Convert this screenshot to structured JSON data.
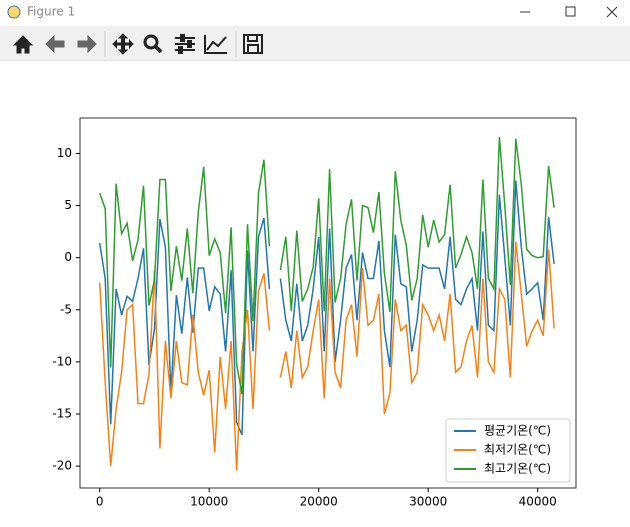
{
  "window": {
    "title": "Figure 1"
  },
  "chart_data": {
    "type": "line",
    "x": [
      0,
      500,
      1000,
      1500,
      2000,
      2500,
      3000,
      3500,
      4000,
      4500,
      5000,
      5500,
      6000,
      6500,
      7000,
      7500,
      8000,
      8500,
      9000,
      9500,
      10000,
      10500,
      11000,
      11500,
      12000,
      12500,
      13000,
      13500,
      14000,
      14500,
      15000,
      15500,
      16000,
      16500,
      17000,
      17500,
      18000,
      18500,
      19000,
      19500,
      20000,
      20500,
      21000,
      21500,
      22000,
      22500,
      23000,
      23500,
      24000,
      24500,
      25000,
      25500,
      26000,
      26500,
      27000,
      27500,
      28000,
      28500,
      29000,
      29500,
      30000,
      30500,
      31000,
      31500,
      32000,
      32500,
      33000,
      33500,
      34000,
      34500,
      35000,
      35500,
      36000,
      36500,
      37000,
      37500,
      38000,
      38500,
      39000,
      39500,
      40000,
      40500,
      41000,
      41500
    ],
    "series": [
      {
        "name": "평균기온(℃)",
        "color": "#1f77b4",
        "values": [
          1.4,
          -2,
          -16,
          -3,
          -5.5,
          -3.7,
          -4.2,
          -2,
          0.9,
          -10.3,
          -6.8,
          3.7,
          1,
          -13,
          -3.6,
          -7.3,
          -1.9,
          -7.2,
          -1,
          -1,
          -5.1,
          -2.8,
          -3.5,
          -9,
          -1.2,
          -15.8,
          -17,
          0.7,
          -9,
          2,
          3.8,
          -3,
          null,
          -2,
          -6,
          -8,
          -2.5,
          -8,
          -6.5,
          -3,
          2,
          -9,
          2.8,
          -10,
          -6,
          -1,
          0.3,
          -6,
          0.5,
          -2,
          -2,
          1.6,
          -7,
          -10.5,
          2.2,
          -2.5,
          -2.8,
          -9,
          -6,
          -0.7,
          -1,
          -1,
          -1,
          -3,
          2,
          -4,
          -4.5,
          -3,
          -2,
          -7,
          2.5,
          -6.5,
          -7,
          6,
          0,
          -6.5,
          7.4,
          1,
          -3.5,
          -3,
          -2.4,
          -6,
          3.9,
          -0.6
        ]
      },
      {
        "name": "최저기온(℃)",
        "color": "#ff7f0e",
        "values": [
          -2.4,
          -12,
          -20,
          -14.5,
          -11,
          -5,
          -4.5,
          -14,
          -14,
          -11.2,
          -1.2,
          -18.3,
          -8,
          -13.5,
          -8,
          -12,
          -12.2,
          -5.5,
          -11,
          -13.2,
          -10.8,
          -18.7,
          -9.5,
          -14.5,
          -8,
          -20.4,
          -9,
          -5,
          -14.5,
          -3.2,
          -1.5,
          -7,
          null,
          -11.5,
          -9,
          -12.5,
          -7,
          -11.5,
          -10.5,
          -7,
          -4,
          -13.5,
          -2,
          -11,
          -12.5,
          -6,
          -4.5,
          -9.5,
          -1,
          -6.5,
          -6,
          -3.5,
          -15,
          -13,
          -4,
          -7,
          -6.5,
          -12,
          -11,
          -4.5,
          -5.5,
          -7,
          -5.5,
          -8,
          -3.5,
          -11,
          -10.5,
          -8,
          -6.5,
          -11.5,
          -2,
          -10,
          -11,
          -3,
          -4,
          -11.5,
          1.5,
          -3.5,
          -8.5,
          -7,
          -6,
          -7.5,
          0.8,
          -6.8
        ]
      },
      {
        "name": "최고기온(℃)",
        "color": "#2ca02c",
        "values": [
          6.2,
          4.7,
          -10.5,
          7.1,
          2.3,
          3.3,
          -0.3,
          1.7,
          6.9,
          -4.6,
          -2.1,
          7.5,
          7.5,
          -3.2,
          1.1,
          -2.2,
          2.8,
          -3.4,
          4.4,
          8.7,
          0.2,
          1.8,
          0.5,
          -5.3,
          2.9,
          -10.2,
          -13.1,
          3.2,
          -6.1,
          6.2,
          9.4,
          1.1,
          null,
          -1.2,
          2,
          -5.1,
          2.6,
          -4.2,
          -3,
          -0.9,
          5.7,
          -5.1,
          8.5,
          -4.3,
          -2,
          3.2,
          5.6,
          -2.2,
          5,
          4.8,
          2.4,
          6.3,
          -1.5,
          -5.2,
          8.3,
          3.6,
          1.2,
          -4.1,
          -2,
          4.1,
          1,
          3.6,
          1.5,
          2.2,
          7,
          -1,
          0.3,
          2,
          0.5,
          -3,
          7.5,
          -2,
          -3,
          11.6,
          5,
          -2.6,
          11.4,
          7,
          0.8,
          0.2,
          0,
          0.1,
          8.8,
          4.8
        ]
      }
    ],
    "xlim": [
      -1800,
      43500
    ],
    "xticks": [
      0,
      10000,
      20000,
      30000,
      40000
    ],
    "ylim": [
      -22.1,
      13.4
    ],
    "yticks": [
      -20,
      -15,
      -10,
      -5,
      0,
      5,
      10
    ],
    "legend": "lower right"
  }
}
